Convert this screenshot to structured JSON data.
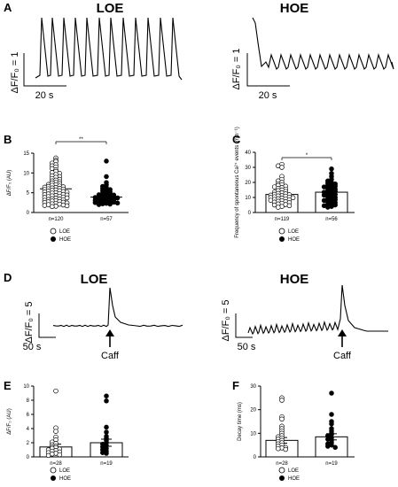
{
  "panels": {
    "A": "A",
    "B": "B",
    "C": "C",
    "D": "D",
    "E": "E",
    "F": "F"
  },
  "titles": {
    "loe": "LOE",
    "hoe": "HOE"
  },
  "traces_A": {
    "scale_y_label": "ΔF/F₀ = 1",
    "scale_x_label": "20 s"
  },
  "traces_D": {
    "scale_y_label": "ΔF/F₀ = 5",
    "scale_x_label": "50 s",
    "caff_label": "Caff"
  },
  "chart_data": [
    {
      "panel": "B",
      "type": "scatter",
      "ylabel": "ΔF/F₀ (AU)",
      "ylim": [
        0,
        15
      ],
      "yticks": [
        "0",
        "5",
        "10",
        "15"
      ],
      "significance": "**",
      "groups": [
        {
          "label": "n=120",
          "marker": "open",
          "mean": 6.0,
          "sem": 0.3,
          "values": [
            13.8,
            13.2,
            12.9,
            12.5,
            12.1,
            11.8,
            11.5,
            11.1,
            10.8,
            10.4,
            10.1,
            9.9,
            9.6,
            9.3,
            9.1,
            8.9,
            8.6,
            8.4,
            8.2,
            8.0,
            7.8,
            7.6,
            7.5,
            7.3,
            7.1,
            7.0,
            6.9,
            6.7,
            6.6,
            6.5,
            6.4,
            6.3,
            6.2,
            6.1,
            6.0,
            5.9,
            5.8,
            5.7,
            5.6,
            5.5,
            5.4,
            5.3,
            5.2,
            5.1,
            5.0,
            4.9,
            4.8,
            4.7,
            4.6,
            4.5,
            4.4,
            4.3,
            4.2,
            4.1,
            4.0,
            3.9,
            3.8,
            3.7,
            3.6,
            3.5,
            3.4,
            3.3,
            3.2,
            3.1,
            3.0,
            2.9,
            2.8,
            2.7,
            2.6,
            2.5,
            2.4,
            2.3,
            2.2,
            2.1,
            2.0,
            1.9,
            1.8,
            1.7,
            1.6,
            1.5
          ]
        },
        {
          "label": "n=57",
          "marker": "filled",
          "mean": 3.9,
          "sem": 0.3,
          "values": [
            13.0,
            9.1,
            7.6,
            7.0,
            6.6,
            6.3,
            6.0,
            5.8,
            5.6,
            5.4,
            5.2,
            5.0,
            4.8,
            4.7,
            4.5,
            4.4,
            4.3,
            4.2,
            4.1,
            4.0,
            3.9,
            3.8,
            3.7,
            3.6,
            3.5,
            3.4,
            3.3,
            3.2,
            3.1,
            3.0,
            2.9,
            2.8,
            2.7,
            2.6,
            2.5,
            2.4,
            2.3,
            2.2,
            2.1,
            2.0
          ]
        }
      ]
    },
    {
      "panel": "C",
      "type": "scatter",
      "ylabel": "Frequency of spontaneous Ca²⁺ events (min⁻¹)",
      "ylim": [
        0,
        40
      ],
      "yticks": [
        "0",
        "10",
        "20",
        "30",
        "40"
      ],
      "significance": "*",
      "groups": [
        {
          "label": "n=119",
          "marker": "open",
          "mean": 12.0,
          "sem": 0.5,
          "values": [
            32,
            31,
            30,
            24,
            22,
            21,
            20,
            19,
            18.5,
            18,
            17.5,
            17,
            16.5,
            16,
            15.5,
            15,
            14.5,
            14,
            13.5,
            13,
            12.7,
            12.4,
            12.1,
            11.8,
            11.5,
            11.2,
            11,
            10.8,
            10.5,
            10.2,
            10,
            9.8,
            9.5,
            9.2,
            9,
            8.7,
            8.4,
            8.1,
            7.8,
            7.5,
            7.2,
            6.9,
            6.5,
            6.1,
            5.7,
            5.3,
            5,
            4.5,
            4,
            3.5
          ]
        },
        {
          "label": "n=56",
          "marker": "filled",
          "mean": 13.5,
          "sem": 0.8,
          "values": [
            29,
            26,
            24,
            22,
            21,
            20,
            19.5,
            19,
            18.5,
            18,
            17.5,
            17,
            16.5,
            16,
            15.5,
            15,
            14.5,
            14,
            13.5,
            13,
            12.5,
            12,
            11.5,
            11,
            10.5,
            10,
            9.5,
            9,
            8.5,
            8,
            7.5,
            7,
            6.5,
            6,
            5.5,
            5,
            4.5,
            4,
            3.5
          ]
        }
      ]
    },
    {
      "panel": "E",
      "type": "bar",
      "ylabel": "ΔF/F₀ (AU)",
      "ylim": [
        0,
        10
      ],
      "yticks": [
        "0",
        "2",
        "4",
        "6",
        "8",
        "10"
      ],
      "groups": [
        {
          "label": "n=28",
          "marker": "open",
          "mean": 1.4,
          "sem": 0.4,
          "values": [
            9.3,
            4.1,
            3.6,
            2.8,
            2.4,
            2.1,
            1.9,
            1.7,
            1.5,
            1.4,
            1.3,
            1.2,
            1.1,
            1.0,
            0.9,
            0.8,
            0.7,
            0.6,
            0.5,
            0.4,
            0.3,
            0.2
          ]
        },
        {
          "label": "n=19",
          "marker": "filled",
          "mean": 2.0,
          "sem": 0.5,
          "values": [
            8.6,
            7.9,
            4.2,
            3.5,
            2.9,
            2.6,
            2.3,
            2.0,
            1.8,
            1.6,
            1.4,
            1.2,
            1.0,
            0.8,
            0.6,
            0.5
          ]
        }
      ]
    },
    {
      "panel": "F",
      "type": "bar",
      "ylabel": "Decay time (ms)",
      "ylim": [
        0,
        30
      ],
      "yticks": [
        "0",
        "10",
        "20",
        "30"
      ],
      "groups": [
        {
          "label": "n=28",
          "marker": "open",
          "mean": 7.0,
          "sem": 1.2,
          "values": [
            25,
            24,
            17,
            16,
            13,
            12,
            11,
            10,
            9,
            8.5,
            8,
            7.5,
            7,
            6.5,
            6,
            5.5,
            5,
            4.5,
            4,
            3.8,
            3.5,
            3.2
          ]
        },
        {
          "label": "n=19",
          "marker": "filled",
          "mean": 8.5,
          "sem": 1.3,
          "values": [
            27,
            18,
            15,
            14,
            12,
            11,
            10,
            9.5,
            9,
            8,
            7.5,
            7,
            6,
            5.5,
            5,
            4.5,
            4
          ]
        }
      ]
    }
  ],
  "legends": {
    "loe": "LOE",
    "hoe": "HOE"
  }
}
